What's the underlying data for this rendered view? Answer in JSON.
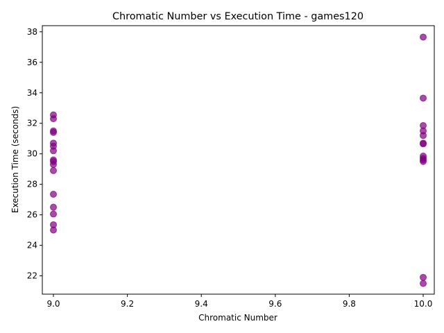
{
  "chart_data": {
    "type": "scatter",
    "title": "Chromatic Number vs Execution Time - games120",
    "xlabel": "Chromatic Number",
    "ylabel": "Execution Time (seconds)",
    "xlim": [
      8.97,
      10.03
    ],
    "ylim": [
      20.8,
      38.4
    ],
    "xticks": [
      9.0,
      9.2,
      9.4,
      9.6,
      9.8,
      10.0
    ],
    "xtick_labels": [
      "9.0",
      "9.2",
      "9.4",
      "9.6",
      "9.8",
      "10.0"
    ],
    "yticks": [
      22,
      24,
      26,
      28,
      30,
      32,
      34,
      36,
      38
    ],
    "ytick_labels": [
      "22",
      "24",
      "26",
      "28",
      "30",
      "32",
      "34",
      "36",
      "38"
    ],
    "grid": false,
    "legend": "none",
    "marker_color": "#800080",
    "marker_alpha": 0.7,
    "points": [
      {
        "x": 9,
        "y": 32.55
      },
      {
        "x": 9,
        "y": 32.3
      },
      {
        "x": 9,
        "y": 31.5
      },
      {
        "x": 9,
        "y": 31.4
      },
      {
        "x": 9,
        "y": 30.7
      },
      {
        "x": 9,
        "y": 30.5
      },
      {
        "x": 9,
        "y": 30.2
      },
      {
        "x": 9,
        "y": 29.6
      },
      {
        "x": 9,
        "y": 29.5
      },
      {
        "x": 9,
        "y": 29.3
      },
      {
        "x": 9,
        "y": 28.9
      },
      {
        "x": 9,
        "y": 27.35
      },
      {
        "x": 9,
        "y": 26.5
      },
      {
        "x": 9,
        "y": 26.05
      },
      {
        "x": 9,
        "y": 25.35
      },
      {
        "x": 9,
        "y": 25.0
      },
      {
        "x": 10,
        "y": 37.65
      },
      {
        "x": 10,
        "y": 33.65
      },
      {
        "x": 10,
        "y": 31.85
      },
      {
        "x": 10,
        "y": 31.5
      },
      {
        "x": 10,
        "y": 31.2
      },
      {
        "x": 10,
        "y": 30.7
      },
      {
        "x": 10,
        "y": 30.65
      },
      {
        "x": 10,
        "y": 29.85
      },
      {
        "x": 10,
        "y": 29.7
      },
      {
        "x": 10,
        "y": 29.6
      },
      {
        "x": 10,
        "y": 29.5
      },
      {
        "x": 10,
        "y": 21.9
      },
      {
        "x": 10,
        "y": 21.5
      }
    ]
  }
}
